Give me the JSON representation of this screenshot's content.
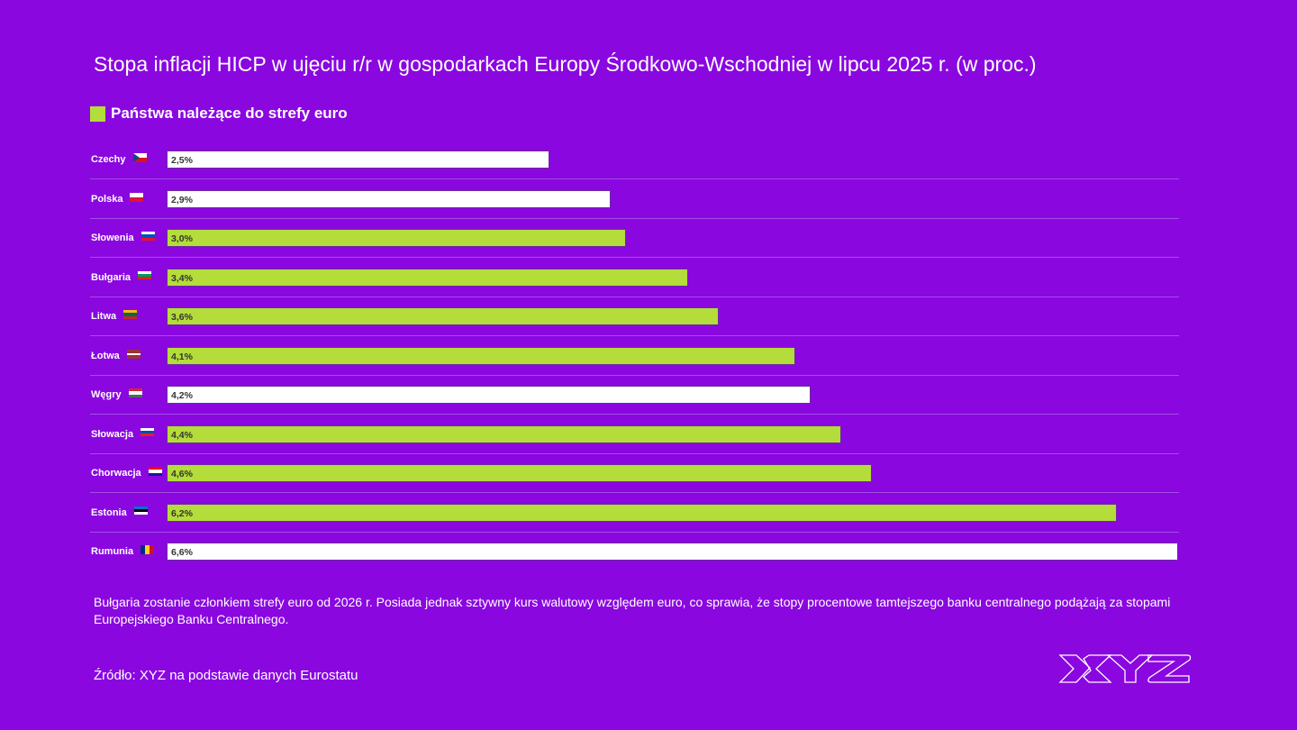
{
  "chart_data": {
    "type": "bar",
    "orientation": "horizontal",
    "title": "Stopa inflacji HICP w ujęciu r/r w gospodarkach Europy Środkowo-Wschodniej w lipcu 2025 r. (w proc.)",
    "legend": {
      "label": "Państwa należące do strefy euro",
      "color": "#b4dc3a",
      "placement": "top-left"
    },
    "xlim": [
      0,
      6.6
    ],
    "categories": [
      "Czechy",
      "Polska",
      "Słowenia",
      "Bułgaria",
      "Litwa",
      "Łotwa",
      "Węgry",
      "Słowacja",
      "Chorwacja",
      "Estonia",
      "Rumunia"
    ],
    "values": [
      2.5,
      2.9,
      3.0,
      3.4,
      3.6,
      4.1,
      4.2,
      4.4,
      4.6,
      6.2,
      6.6
    ],
    "labels": [
      "2,5%",
      "2,9%",
      "3,0%",
      "3,4%",
      "3,6%",
      "4,1%",
      "4,2%",
      "4,4%",
      "4,6%",
      "6,2%",
      "6,6%"
    ],
    "euro": [
      false,
      false,
      true,
      true,
      true,
      true,
      false,
      true,
      true,
      true,
      false
    ],
    "flags": [
      {
        "colors": [
          "#ffffff",
          "#d7141a"
        ],
        "tri": "#11457e"
      },
      {
        "colors": [
          "#ffffff",
          "#dc143c"
        ]
      },
      {
        "colors": [
          "#ffffff",
          "#0050c8",
          "#e8112d"
        ]
      },
      {
        "colors": [
          "#ffffff",
          "#00966e",
          "#d62612"
        ]
      },
      {
        "colors": [
          "#fdb913",
          "#006a44",
          "#c1272d"
        ]
      },
      {
        "colors": [
          "#9e3039",
          "#9e3039",
          "#ffffff",
          "#9e3039",
          "#9e3039"
        ]
      },
      {
        "colors": [
          "#ce2939",
          "#ffffff",
          "#477050"
        ]
      },
      {
        "colors": [
          "#ffffff",
          "#0b4ea2",
          "#ee1c25"
        ]
      },
      {
        "colors": [
          "#ff0000",
          "#ffffff",
          "#171796"
        ]
      },
      {
        "colors": [
          "#0072ce",
          "#000000",
          "#ffffff"
        ]
      },
      {
        "colors": [
          "#002b7f",
          "#fcd116",
          "#ce1126"
        ],
        "vertical": true
      }
    ],
    "colors": {
      "euro": "#b4dc3a",
      "non_euro": "#ffffff"
    }
  },
  "note": "Bułgaria zostanie członkiem strefy euro od 2026 r. Posiada jednak sztywny kurs walutowy względem euro, co sprawia, że stopy procentowe tamtejszego banku centralnego podążają za stopami Europejskiego Banku Centralnego.",
  "source": "Źródło: XYZ na podstawie danych Eurostatu",
  "logo": "XYZ"
}
